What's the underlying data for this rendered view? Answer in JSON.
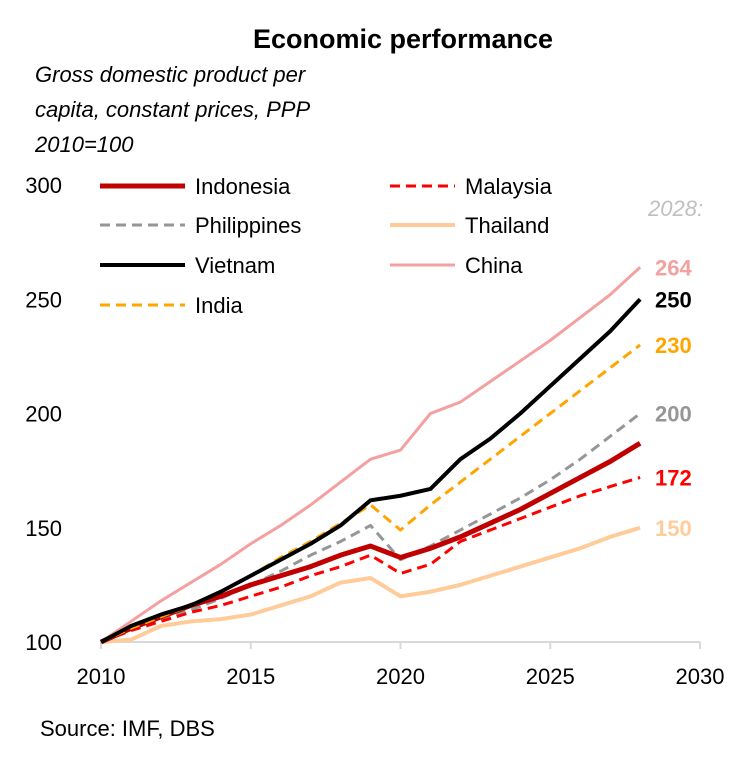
{
  "chart_data": {
    "type": "line",
    "title": "Economic performance",
    "subtitle": [
      "Gross domestic product per",
      "capita, constant prices, PPP",
      "2010=100"
    ],
    "source": "Source: IMF, DBS",
    "end_label_header": "2028:",
    "xlim": [
      2010,
      2030
    ],
    "ylim": [
      100,
      300
    ],
    "x_ticks": [
      "2010",
      "2015",
      "2020",
      "2025",
      "2030"
    ],
    "y_ticks": [
      "100",
      "150",
      "200",
      "250",
      "300"
    ],
    "grid": false,
    "legend_position": "top-left",
    "x": [
      2010,
      2011,
      2012,
      2013,
      2014,
      2015,
      2016,
      2017,
      2018,
      2019,
      2020,
      2021,
      2022,
      2023,
      2024,
      2025,
      2026,
      2027,
      2028
    ],
    "series": [
      {
        "name": "Indonesia",
        "color": "#C00000",
        "style": "solid",
        "width": 5,
        "end_label": "",
        "values": [
          100,
          106,
          111,
          116,
          120,
          125,
          129,
          133,
          138,
          142,
          137,
          141,
          146,
          152,
          158,
          165,
          172,
          179,
          187
        ]
      },
      {
        "name": "Malaysia",
        "color": "#FF0000",
        "style": "dashed",
        "width": 3,
        "end_label": "172",
        "values": [
          100,
          105,
          109,
          113,
          116,
          120,
          124,
          129,
          133,
          138,
          130,
          134,
          144,
          149,
          154,
          159,
          164,
          168,
          172
        ]
      },
      {
        "name": "Philippines",
        "color": "#969696",
        "style": "dashed",
        "width": 3,
        "end_label": "200",
        "values": [
          100,
          106,
          110,
          114,
          119,
          125,
          131,
          138,
          144,
          151,
          136,
          142,
          149,
          156,
          163,
          171,
          180,
          190,
          200
        ]
      },
      {
        "name": "Thailand",
        "color": "#FFCC99",
        "style": "solid",
        "width": 4,
        "end_label": "150",
        "values": [
          100,
          101,
          107,
          109,
          110,
          112,
          116,
          120,
          126,
          128,
          120,
          122,
          125,
          129,
          133,
          137,
          141,
          146,
          150
        ]
      },
      {
        "name": "Vietnam",
        "color": "#000000",
        "style": "solid",
        "width": 4,
        "end_label": "250",
        "values": [
          100,
          107,
          112,
          116,
          122,
          129,
          136,
          143,
          151,
          162,
          164,
          167,
          180,
          189,
          200,
          212,
          224,
          236,
          250
        ]
      },
      {
        "name": "China",
        "color": "#F4A0A0",
        "style": "solid",
        "width": 3,
        "end_label": "264",
        "values": [
          100,
          109,
          118,
          126,
          134,
          143,
          151,
          160,
          170,
          180,
          184,
          200,
          205,
          214,
          223,
          232,
          242,
          252,
          264
        ]
      },
      {
        "name": "India",
        "color": "#FFA500",
        "style": "dashed",
        "width": 3,
        "end_label": "230",
        "values": [
          100,
          106,
          111,
          116,
          122,
          129,
          137,
          144,
          152,
          160,
          149,
          160,
          170,
          180,
          190,
          200,
          210,
          220,
          230
        ]
      }
    ]
  }
}
